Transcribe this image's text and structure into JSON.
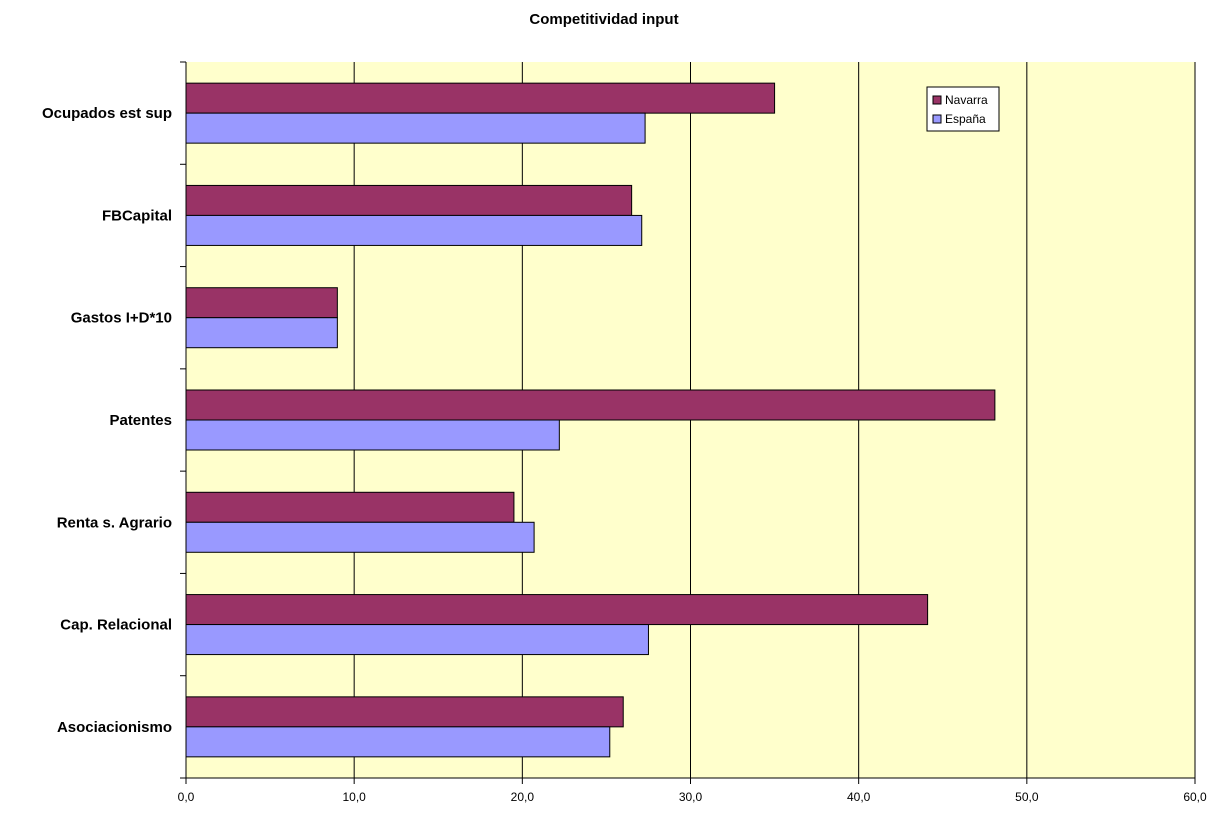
{
  "chart_data": {
    "type": "bar",
    "orientation": "horizontal",
    "title": "Competitividad input",
    "xlabel": "",
    "ylabel": "",
    "categories": [
      "Ocupados est sup",
      "FBCapital",
      "Gastos I+D*10",
      "Patentes",
      "Renta s. Agrario",
      "Cap. Relacional",
      "Asociacionismo"
    ],
    "series": [
      {
        "name": "Navarra",
        "values": [
          35.0,
          26.5,
          9.0,
          48.1,
          19.5,
          44.1,
          26.0
        ],
        "color": "#993366"
      },
      {
        "name": "España",
        "values": [
          27.3,
          27.1,
          9.0,
          22.2,
          20.7,
          27.5,
          25.2
        ],
        "color": "#9999ff"
      }
    ],
    "xlim": [
      0,
      60
    ],
    "xticks": [
      "0,0",
      "10,0",
      "20,0",
      "30,0",
      "40,0",
      "50,0",
      "60,0"
    ],
    "grid": true,
    "legend_position": "top-right",
    "plot_background": "#ffffcc"
  }
}
